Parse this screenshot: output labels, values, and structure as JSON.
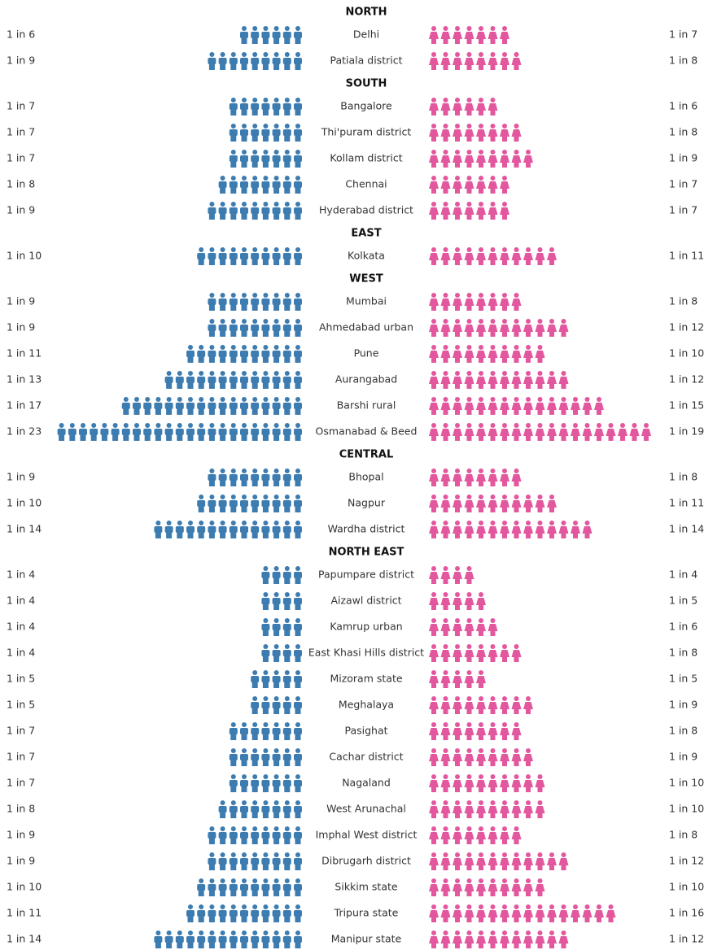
{
  "chart_data": {
    "type": "pictogram",
    "sections": [
      {
        "name": "NORTH",
        "categories": [
          "Delhi",
          "Patiala district"
        ],
        "series": [
          {
            "color": "#3d7cb1",
            "values": [
              6,
              9
            ],
            "value_labels": [
              "1 in 6",
              "1 in 9"
            ]
          },
          {
            "color": "#e2579d",
            "values": [
              7,
              8
            ],
            "value_labels": [
              "1 in 7",
              "1 in 8"
            ]
          }
        ]
      },
      {
        "name": "SOUTH",
        "categories": [
          "Bangalore",
          "Thi'puram district",
          "Kollam district",
          "Chennai",
          "Hyderabad district"
        ],
        "series": [
          {
            "color": "#3d7cb1",
            "values": [
              7,
              7,
              7,
              8,
              9
            ],
            "value_labels": [
              "1 in 7",
              "1 in 7",
              "1 in 7",
              "1 in 8",
              "1 in 9"
            ]
          },
          {
            "color": "#e2579d",
            "values": [
              6,
              8,
              9,
              7,
              7
            ],
            "value_labels": [
              "1 in 6",
              "1 in 8",
              "1 in 9",
              "1 in 7",
              "1 in 7"
            ]
          }
        ]
      },
      {
        "name": "EAST",
        "categories": [
          "Kolkata"
        ],
        "series": [
          {
            "color": "#3d7cb1",
            "values": [
              10
            ],
            "value_labels": [
              "1 in 10"
            ]
          },
          {
            "color": "#e2579d",
            "values": [
              11
            ],
            "value_labels": [
              "1 in 11"
            ]
          }
        ]
      },
      {
        "name": "WEST",
        "categories": [
          "Mumbai",
          "Ahmedabad urban",
          "Pune",
          "Aurangabad",
          "Barshi rural",
          "Osmanabad & Beed"
        ],
        "series": [
          {
            "color": "#3d7cb1",
            "values": [
              9,
              9,
              11,
              13,
              17,
              23
            ],
            "value_labels": [
              "1 in 9",
              "1 in 9",
              "1 in 11",
              "1 in 13",
              "1 in 17",
              "1 in 23"
            ]
          },
          {
            "color": "#e2579d",
            "values": [
              8,
              12,
              10,
              12,
              15,
              19
            ],
            "value_labels": [
              "1 in 8",
              "1 in 12",
              "1 in 10",
              "1 in 12",
              "1 in 15",
              "1 in 19"
            ]
          }
        ]
      },
      {
        "name": "CENTRAL",
        "categories": [
          "Bhopal",
          "Nagpur",
          "Wardha district"
        ],
        "series": [
          {
            "color": "#3d7cb1",
            "values": [
              9,
              10,
              14
            ],
            "value_labels": [
              "1 in 9",
              "1 in 10",
              "1 in 14"
            ]
          },
          {
            "color": "#e2579d",
            "values": [
              8,
              11,
              14
            ],
            "value_labels": [
              "1 in 8",
              "1 in 11",
              "1 in 14"
            ]
          }
        ]
      },
      {
        "name": "NORTH EAST",
        "categories": [
          "Papumpare district",
          "Aizawl district",
          "Kamrup urban",
          "East Khasi Hills district",
          "Mizoram state",
          "Meghalaya",
          "Pasighat",
          "Cachar district",
          "Nagaland",
          "West Arunachal",
          "Imphal West district",
          "Dibrugarh district",
          "Sikkim state",
          "Tripura state",
          "Manipur state"
        ],
        "series": [
          {
            "color": "#3d7cb1",
            "values": [
              4,
              4,
              4,
              4,
              5,
              5,
              7,
              7,
              7,
              8,
              9,
              9,
              10,
              11,
              14
            ],
            "value_labels": [
              "1 in 4",
              "1 in 4",
              "1 in 4",
              "1 in 4",
              "1 in 5",
              "1 in 5",
              "1 in 7",
              "1 in 7",
              "1 in 7",
              "1 in 8",
              "1 in 9",
              "1 in 9",
              "1 in 10",
              "1 in 11",
              "1 in 14"
            ]
          },
          {
            "color": "#e2579d",
            "values": [
              4,
              5,
              6,
              8,
              5,
              9,
              8,
              9,
              10,
              10,
              8,
              12,
              10,
              16,
              12
            ],
            "value_labels": [
              "1 in 4",
              "1 in 5",
              "1 in 6",
              "1 in 8",
              "1 in 5",
              "1 in 9",
              "1 in 8",
              "1 in 9",
              "1 in 10",
              "1 in 10",
              "1 in 8",
              "1 in 12",
              "1 in 10",
              "1 in 16",
              "1 in 12"
            ]
          }
        ]
      }
    ]
  }
}
